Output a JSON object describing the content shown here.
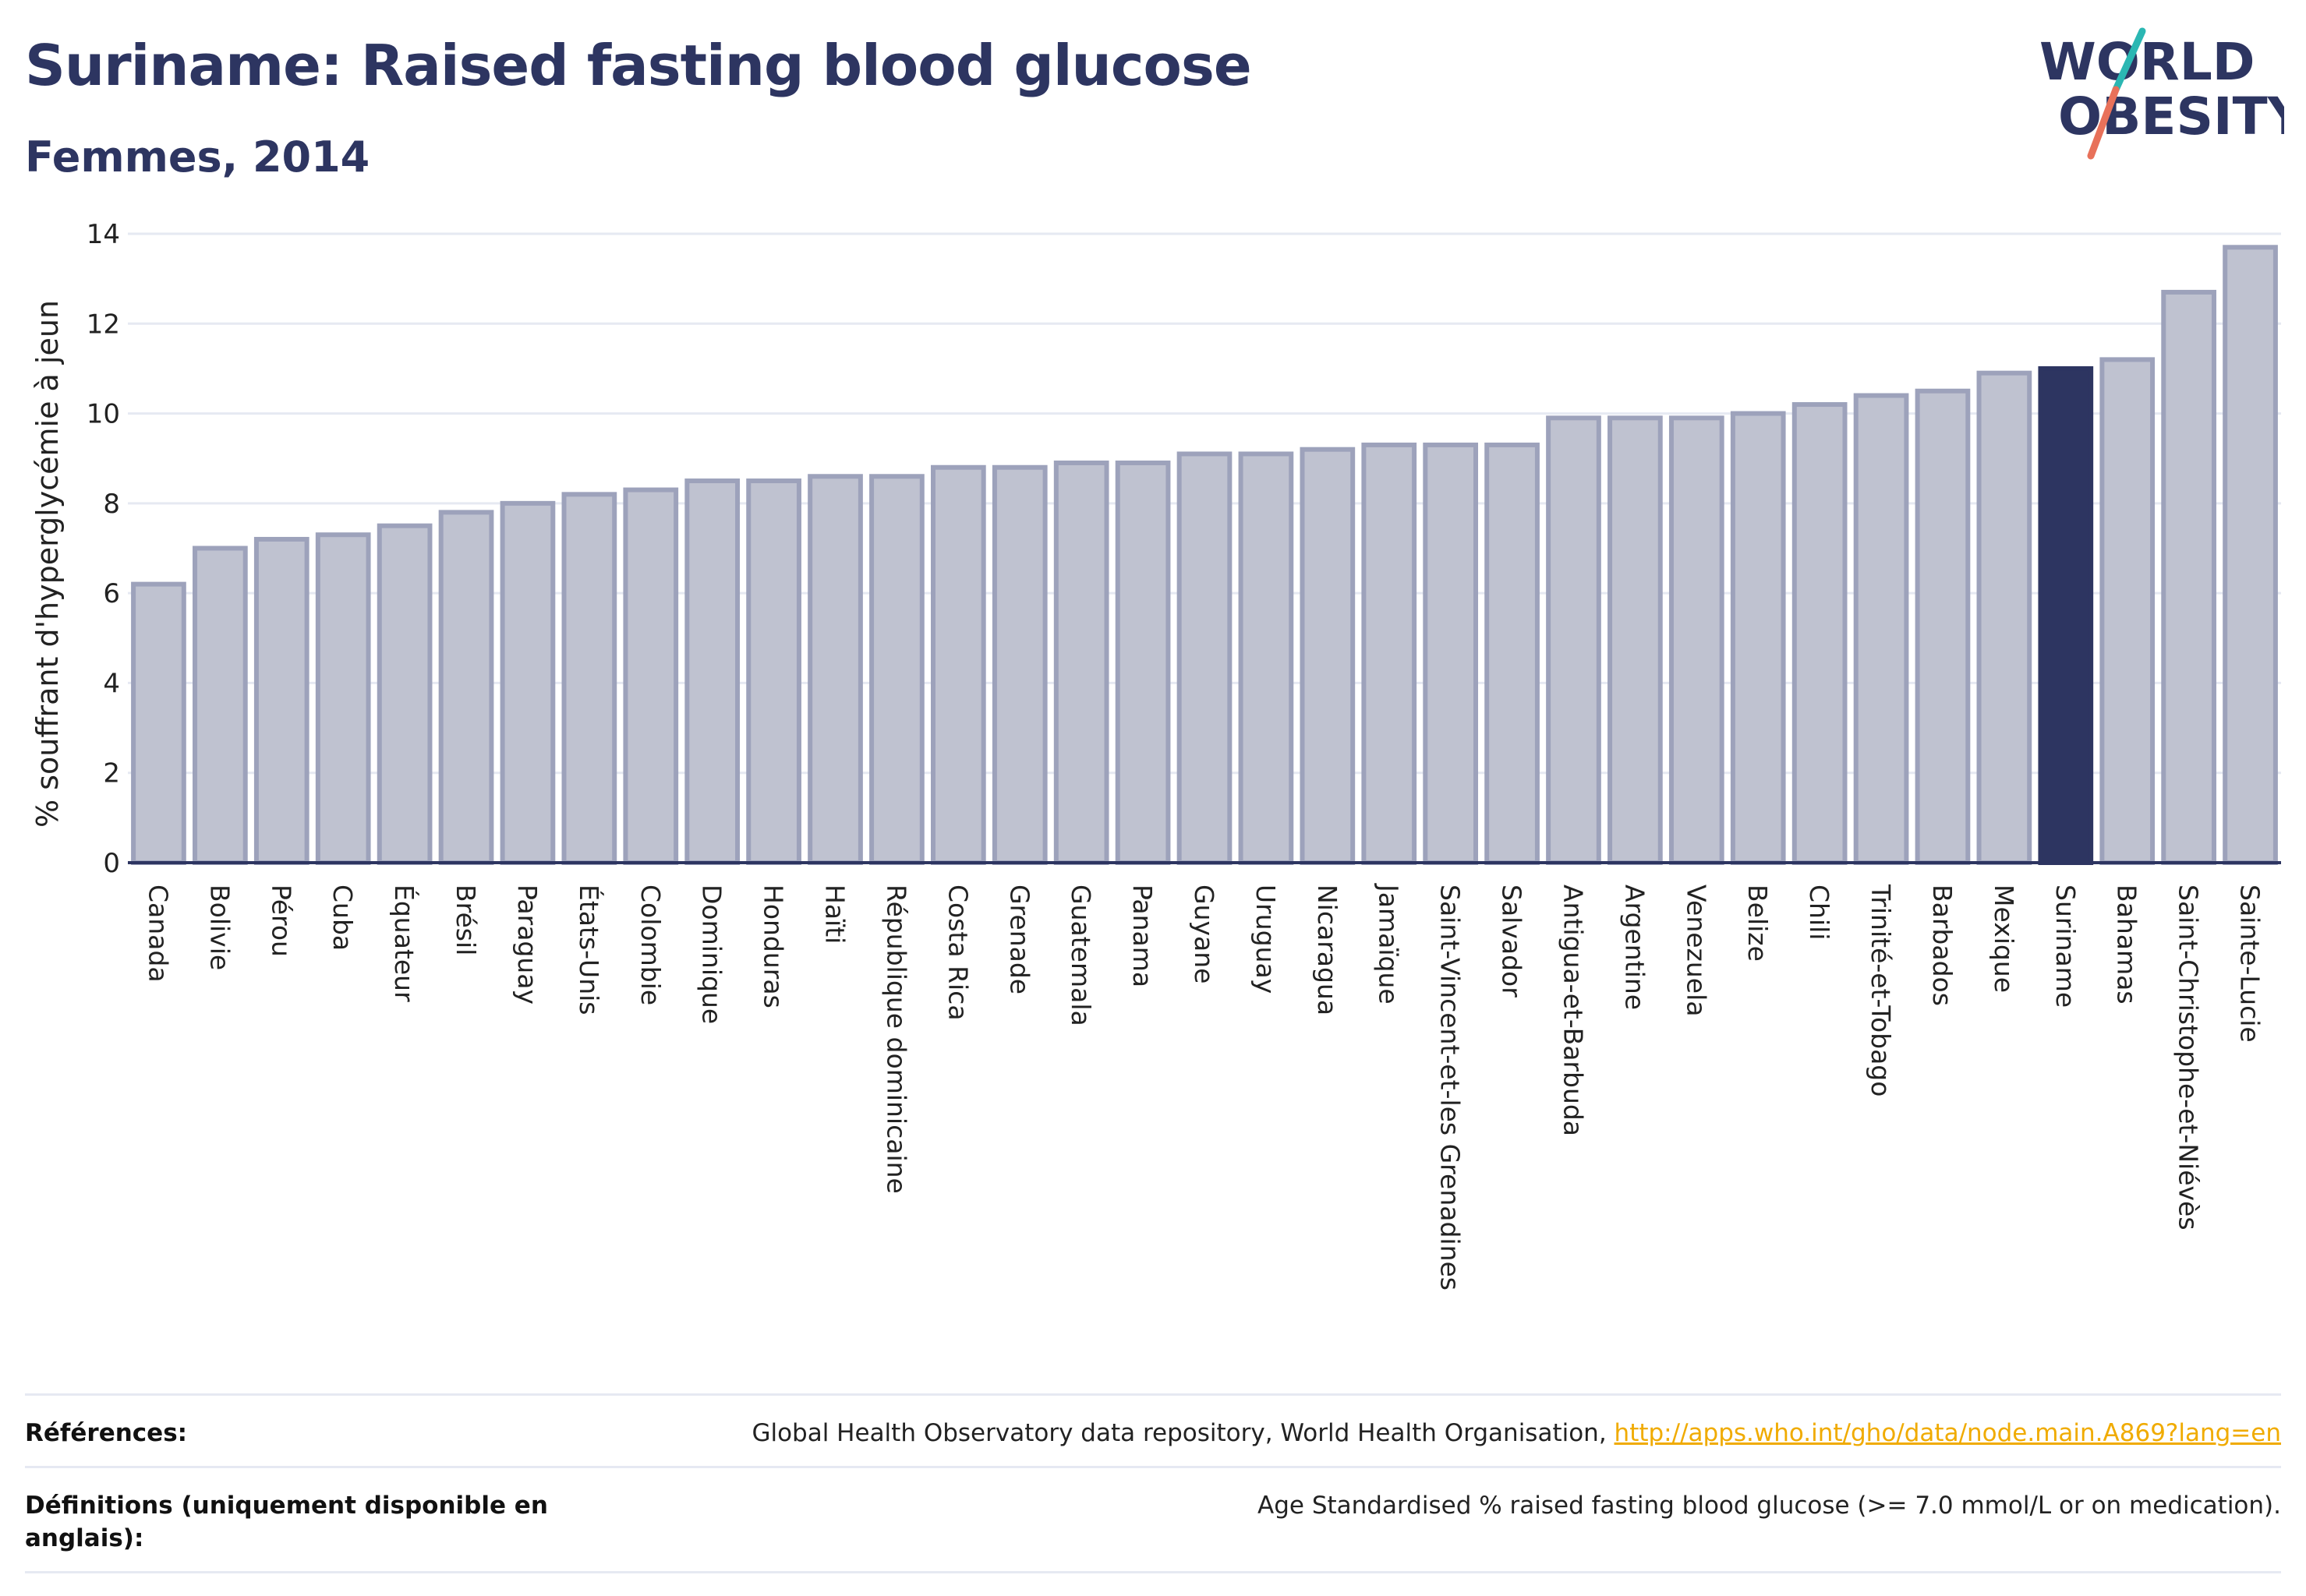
{
  "header": {
    "title": "Suriname: Raised fasting blood glucose",
    "subtitle": "Femmes, 2014"
  },
  "logo": {
    "line1": "WORLD",
    "line2": "OBESITY",
    "text_color": "#2d3561",
    "slash_colors": [
      "#2bb7b3",
      "#e8715a"
    ]
  },
  "colors": {
    "bar_fill": "#bfc2d0",
    "bar_stroke": "#9da2bb",
    "highlight_fill": "#2d3561",
    "grid": "#e6e9f2",
    "baseline": "#2d3561"
  },
  "chart_data": {
    "type": "bar",
    "title": "Suriname: Raised fasting blood glucose",
    "subtitle": "Femmes, 2014",
    "xlabel": "",
    "ylabel": "% souffrant d'hyperglycémie à jeun",
    "ylim": [
      0,
      14
    ],
    "yticks": [
      0,
      2,
      4,
      6,
      8,
      10,
      12,
      14
    ],
    "grid": true,
    "highlight": "Suriname",
    "categories": [
      "Canada",
      "Bolivie",
      "Pérou",
      "Cuba",
      "Équateur",
      "Brésil",
      "Paraguay",
      "États-Unis",
      "Colombie",
      "Dominique",
      "Honduras",
      "Haïti",
      "République dominicaine",
      "Costa Rica",
      "Grenade",
      "Guatemala",
      "Panama",
      "Guyane",
      "Uruguay",
      "Nicaragua",
      "Jamaïque",
      "Saint-Vincent-et-les Grenadines",
      "Salvador",
      "Antigua-et-Barbuda",
      "Argentine",
      "Venezuela",
      "Belize",
      "Chili",
      "Trinité-et-Tobago",
      "Barbados",
      "Mexique",
      "Suriname",
      "Bahamas",
      "Saint-Christophe-et-Niévès",
      "Sainte-Lucie"
    ],
    "values": [
      6.2,
      7.0,
      7.2,
      7.3,
      7.5,
      7.8,
      8.0,
      8.2,
      8.3,
      8.5,
      8.5,
      8.6,
      8.6,
      8.8,
      8.8,
      8.9,
      8.9,
      9.1,
      9.1,
      9.2,
      9.3,
      9.3,
      9.3,
      9.9,
      9.9,
      9.9,
      10.0,
      10.2,
      10.4,
      10.5,
      10.9,
      11.0,
      11.2,
      12.7,
      13.7
    ]
  },
  "references": {
    "label": "Références:",
    "text": "Global Health Observatory data repository, World Health Organisation, ",
    "link": "http://apps.who.int/gho/data/node.main.A869?lang=en"
  },
  "definitions": {
    "label": "Définitions (uniquement disponible en anglais):",
    "text": "Age Standardised % raised fasting blood glucose (>= 7.0 mmol/L or on medication)."
  }
}
